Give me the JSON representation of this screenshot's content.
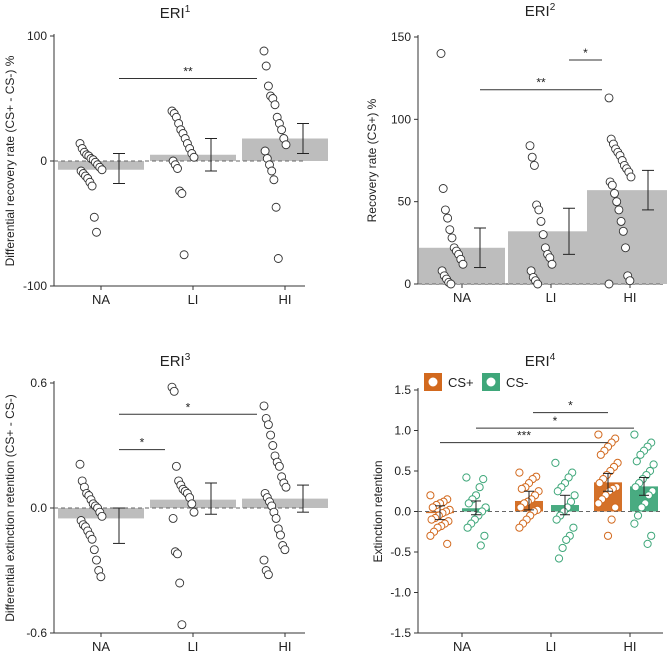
{
  "chart_data": [
    {
      "id": "eri1",
      "type": "bar",
      "title": "ERI",
      "title_sup": "1",
      "ylabel": "Differential recovery rate (CS+ - CS-) %",
      "xlabel": "",
      "categories": [
        "NA",
        "LI",
        "HI"
      ],
      "ylim": [
        -100,
        100
      ],
      "yticks": [
        -100,
        0,
        100
      ],
      "ytick_labels": [
        "-100",
        "0",
        "100"
      ],
      "values": [
        -7,
        5,
        18
      ],
      "error_low": [
        -18,
        -8,
        6
      ],
      "error_high": [
        6,
        18,
        30
      ],
      "baseline": 0,
      "points": [
        [
          14,
          10,
          7,
          5,
          4,
          2,
          1,
          -1,
          -3,
          -5,
          -7,
          -8,
          -10,
          -12,
          -14,
          -17,
          -20,
          -45,
          -57
        ],
        [
          40,
          38,
          35,
          30,
          25,
          22,
          18,
          14,
          10,
          6,
          3,
          0,
          -3,
          -6,
          -24,
          -26,
          -75
        ],
        [
          88,
          76,
          60,
          52,
          50,
          45,
          35,
          30,
          25,
          18,
          13,
          8,
          2,
          -3,
          -8,
          -15,
          -37,
          -78
        ]
      ],
      "significance": [
        {
          "from": 0,
          "to": 2,
          "label": "**",
          "y": 66
        }
      ]
    },
    {
      "id": "eri2",
      "type": "bar",
      "title": "ERI",
      "title_sup": "2",
      "ylabel": "Recovery rate (CS+) %",
      "xlabel": "",
      "categories": [
        "NA",
        "LI",
        "HI"
      ],
      "ylim": [
        0,
        150
      ],
      "yticks": [
        0,
        50,
        100,
        150
      ],
      "ytick_labels": [
        "0",
        "50",
        "100",
        "150"
      ],
      "values": [
        22,
        32,
        57
      ],
      "error_low": [
        10,
        18,
        45
      ],
      "error_high": [
        34,
        46,
        69
      ],
      "baseline": 0,
      "points": [
        [
          140,
          58,
          45,
          40,
          33,
          28,
          22,
          20,
          18,
          15,
          12,
          8,
          5,
          3,
          1,
          0
        ],
        [
          84,
          77,
          72,
          48,
          45,
          38,
          30,
          22,
          18,
          16,
          12,
          8,
          4,
          2,
          0
        ],
        [
          113,
          88,
          85,
          82,
          80,
          78,
          75,
          72,
          70,
          68,
          65,
          62,
          60,
          55,
          50,
          45,
          38,
          32,
          22,
          5,
          2,
          0
        ]
      ],
      "significance": [
        {
          "from": 1,
          "to": 2,
          "label": "*",
          "y": 136
        },
        {
          "from": 0,
          "to": 2,
          "label": "**",
          "y": 118
        }
      ]
    },
    {
      "id": "eri3",
      "type": "bar",
      "title": "ERI",
      "title_sup": "3",
      "ylabel": "Differential extinction retention (CS+ - CS-)",
      "xlabel": "",
      "categories": [
        "NA",
        "LI",
        "HI"
      ],
      "ylim": [
        -0.6,
        0.6
      ],
      "yticks": [
        -0.6,
        0,
        0.6
      ],
      "ytick_labels": [
        "-0.6",
        "0.0",
        "0.6"
      ],
      "values": [
        -0.05,
        0.04,
        0.045
      ],
      "error_low": [
        -0.17,
        -0.03,
        -0.02
      ],
      "error_high": [
        0.0,
        0.12,
        0.11
      ],
      "baseline": 0,
      "points": [
        [
          0.21,
          0.13,
          0.1,
          0.07,
          0.06,
          0.04,
          0.02,
          0.01,
          0.0,
          -0.02,
          -0.04,
          -0.06,
          -0.08,
          -0.09,
          -0.11,
          -0.13,
          -0.15,
          -0.2,
          -0.25,
          -0.3,
          -0.33
        ],
        [
          0.58,
          0.56,
          0.2,
          0.13,
          0.11,
          0.09,
          0.08,
          0.07,
          0.05,
          0.02,
          -0.02,
          -0.05,
          -0.21,
          -0.22,
          -0.36,
          -0.56
        ],
        [
          0.49,
          0.43,
          0.4,
          0.35,
          0.3,
          0.25,
          0.22,
          0.2,
          0.15,
          0.12,
          0.1,
          0.07,
          0.05,
          0.03,
          0.01,
          -0.02,
          -0.05,
          -0.1,
          -0.13,
          -0.18,
          -0.2,
          -0.25,
          -0.3,
          -0.32
        ]
      ],
      "significance": [
        {
          "from": 0,
          "to": 2,
          "label": "*",
          "y": 0.45
        },
        {
          "from": 0,
          "to": 1,
          "label": "*",
          "y": 0.28
        }
      ]
    },
    {
      "id": "eri4",
      "type": "bar",
      "title": "ERI",
      "title_sup": "4",
      "ylabel": "Extinction retention",
      "xlabel": "",
      "categories": [
        "NA",
        "LI",
        "HI"
      ],
      "ylim": [
        -1.5,
        1.5
      ],
      "yticks": [
        -1.5,
        -1.0,
        -0.5,
        0.0,
        0.5,
        1.0,
        1.5
      ],
      "ytick_labels": [
        "-1.5",
        "-1.0",
        "-0.5",
        "0.0",
        "0.5",
        "1.0",
        "1.5"
      ],
      "legend_position": "top-left",
      "series": [
        {
          "name": "CS+",
          "color": "#d2691e",
          "values": [
            -0.02,
            0.13,
            0.36
          ],
          "error_low": [
            -0.1,
            0.02,
            0.25
          ],
          "error_high": [
            0.07,
            0.25,
            0.47
          ],
          "points": [
            [
              0.2,
              0.15,
              0.12,
              0.1,
              0.08,
              0.05,
              0.02,
              0.0,
              -0.02,
              -0.05,
              -0.08,
              -0.1,
              -0.12,
              -0.15,
              -0.18,
              -0.2,
              -0.25,
              -0.3,
              -0.4
            ],
            [
              0.48,
              0.43,
              0.4,
              0.35,
              0.3,
              0.28,
              0.25,
              0.2,
              0.15,
              0.12,
              0.1,
              0.05,
              0.02,
              0.0,
              -0.05,
              -0.1,
              -0.15,
              -0.2
            ],
            [
              0.95,
              0.9,
              0.85,
              0.8,
              0.75,
              0.7,
              0.6,
              0.55,
              0.5,
              0.45,
              0.4,
              0.35,
              0.3,
              0.28,
              0.25,
              0.2,
              0.15,
              0.1,
              0.05,
              -0.1,
              -0.3
            ]
          ]
        },
        {
          "name": "CS-",
          "color": "#3fa77a",
          "values": [
            0.04,
            0.08,
            0.31
          ],
          "error_low": [
            -0.04,
            -0.04,
            0.2
          ],
          "error_high": [
            0.13,
            0.2,
            0.42
          ],
          "points": [
            [
              0.42,
              0.4,
              0.3,
              0.2,
              0.15,
              0.1,
              0.05,
              0.0,
              -0.05,
              -0.1,
              -0.15,
              -0.2,
              -0.3,
              -0.42
            ],
            [
              0.6,
              0.48,
              0.42,
              0.35,
              0.3,
              0.25,
              0.2,
              0.12,
              0.05,
              0.0,
              -0.05,
              -0.1,
              -0.2,
              -0.3,
              -0.35,
              -0.45,
              -0.58
            ],
            [
              0.95,
              0.85,
              0.8,
              0.75,
              0.7,
              0.62,
              0.58,
              0.5,
              0.45,
              0.4,
              0.35,
              0.3,
              0.25,
              0.2,
              0.1,
              0.05,
              -0.05,
              -0.15,
              -0.3,
              -0.4
            ]
          ]
        }
      ],
      "significance": [
        {
          "from": 1,
          "to": 2,
          "label": "*",
          "y": 1.22
        },
        {
          "from": 0,
          "to": 2,
          "label": "*",
          "y": 1.03
        },
        {
          "from": 0,
          "to": 2,
          "label": "***",
          "y": 0.85,
          "series_from": 0,
          "series_to": 0
        }
      ]
    }
  ]
}
